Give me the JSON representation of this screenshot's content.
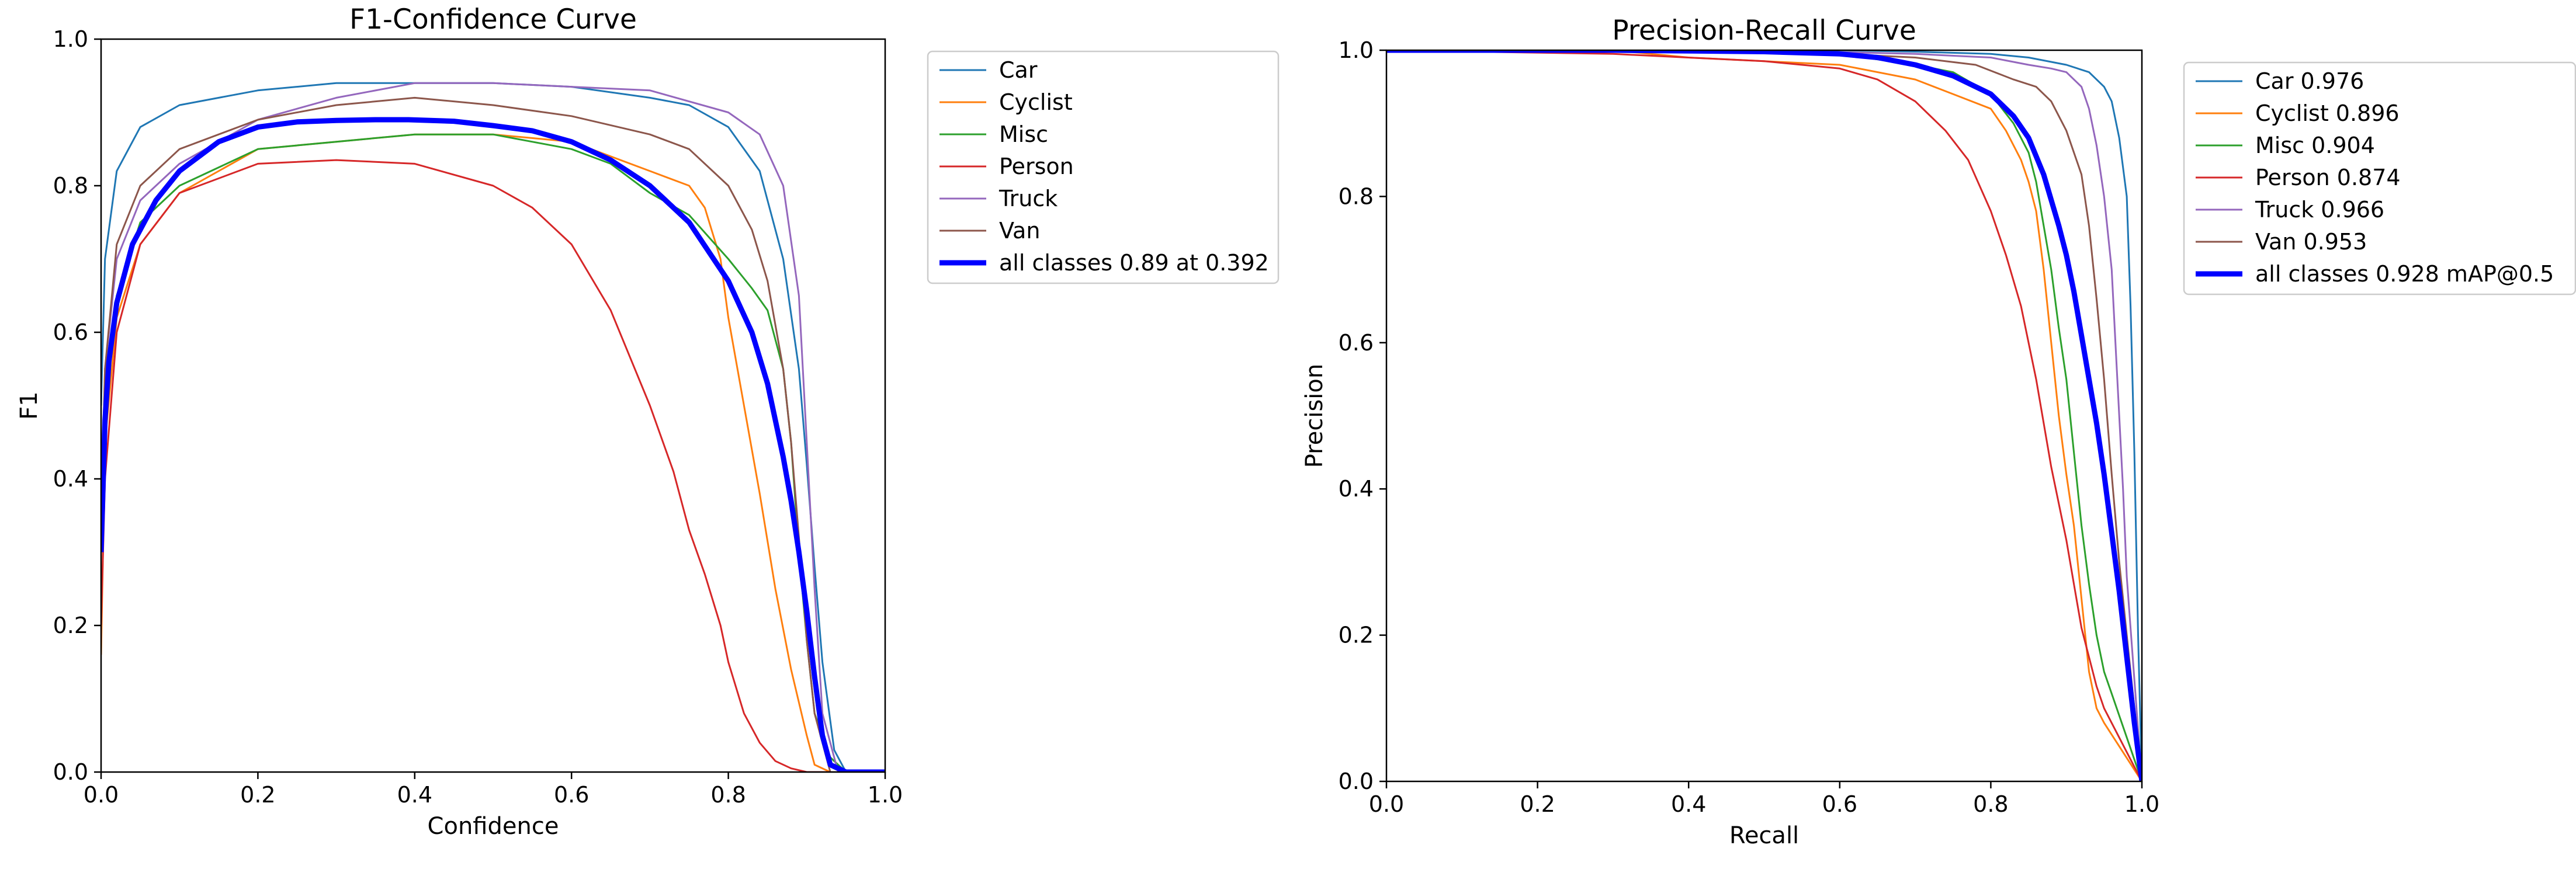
{
  "colors": {
    "Car": "#1f77b4",
    "Cyclist": "#ff7f0e",
    "Misc": "#2ca02c",
    "Person": "#d62728",
    "Truck": "#9467bd",
    "Van": "#8c564b",
    "all_classes": "#0000ff"
  },
  "chart_data": [
    {
      "type": "line",
      "title": "F1-Confidence Curve",
      "xlabel": "Confidence",
      "ylabel": "F1",
      "xlim": [
        0,
        1
      ],
      "ylim": [
        0,
        1
      ],
      "xticks": [
        "0.0",
        "0.2",
        "0.4",
        "0.6",
        "0.8",
        "1.0"
      ],
      "yticks": [
        "0.0",
        "0.2",
        "0.4",
        "0.6",
        "0.8",
        "1.0"
      ],
      "grid": false,
      "legend_position": "outside-right",
      "series": [
        {
          "name": "Car",
          "color": "#1f77b4",
          "width": 3,
          "x": [
            0,
            0.005,
            0.02,
            0.05,
            0.1,
            0.2,
            0.3,
            0.4,
            0.5,
            0.6,
            0.7,
            0.75,
            0.8,
            0.84,
            0.87,
            0.89,
            0.9,
            0.91,
            0.92,
            0.935,
            0.95,
            1.0
          ],
          "y": [
            0.5,
            0.7,
            0.82,
            0.88,
            0.91,
            0.93,
            0.94,
            0.94,
            0.94,
            0.935,
            0.92,
            0.91,
            0.88,
            0.82,
            0.7,
            0.55,
            0.42,
            0.28,
            0.15,
            0.03,
            0.0,
            0.0
          ]
        },
        {
          "name": "Cyclist",
          "color": "#ff7f0e",
          "width": 3,
          "x": [
            0,
            0.005,
            0.02,
            0.05,
            0.1,
            0.2,
            0.3,
            0.4,
            0.5,
            0.6,
            0.7,
            0.75,
            0.77,
            0.79,
            0.8,
            0.82,
            0.84,
            0.86,
            0.88,
            0.9,
            0.91,
            0.93,
            1.0
          ],
          "y": [
            0.16,
            0.45,
            0.62,
            0.72,
            0.79,
            0.85,
            0.86,
            0.87,
            0.87,
            0.86,
            0.82,
            0.8,
            0.77,
            0.7,
            0.62,
            0.5,
            0.38,
            0.25,
            0.14,
            0.05,
            0.01,
            0.0,
            0.0
          ]
        },
        {
          "name": "Misc",
          "color": "#2ca02c",
          "width": 3,
          "x": [
            0,
            0.005,
            0.02,
            0.05,
            0.1,
            0.2,
            0.3,
            0.4,
            0.5,
            0.6,
            0.65,
            0.7,
            0.75,
            0.8,
            0.83,
            0.85,
            0.87,
            0.88,
            0.89,
            0.9,
            0.91,
            0.93,
            0.95,
            1.0
          ],
          "y": [
            0.3,
            0.5,
            0.65,
            0.75,
            0.8,
            0.85,
            0.86,
            0.87,
            0.87,
            0.85,
            0.83,
            0.79,
            0.76,
            0.7,
            0.66,
            0.63,
            0.55,
            0.45,
            0.3,
            0.18,
            0.08,
            0.02,
            0.0,
            0.0
          ]
        },
        {
          "name": "Person",
          "color": "#d62728",
          "width": 3,
          "x": [
            0,
            0.005,
            0.02,
            0.05,
            0.1,
            0.2,
            0.3,
            0.4,
            0.5,
            0.55,
            0.6,
            0.65,
            0.7,
            0.73,
            0.75,
            0.77,
            0.79,
            0.8,
            0.82,
            0.84,
            0.86,
            0.88,
            0.9,
            1.0
          ],
          "y": [
            0.2,
            0.4,
            0.6,
            0.72,
            0.79,
            0.83,
            0.835,
            0.83,
            0.8,
            0.77,
            0.72,
            0.63,
            0.5,
            0.41,
            0.33,
            0.27,
            0.2,
            0.15,
            0.08,
            0.04,
            0.015,
            0.005,
            0.0,
            0.0
          ]
        },
        {
          "name": "Truck",
          "color": "#9467bd",
          "width": 3,
          "x": [
            0,
            0.005,
            0.02,
            0.05,
            0.1,
            0.2,
            0.3,
            0.4,
            0.5,
            0.6,
            0.7,
            0.8,
            0.84,
            0.87,
            0.89,
            0.9,
            0.91,
            0.92,
            0.94,
            1.0
          ],
          "y": [
            0.35,
            0.55,
            0.7,
            0.78,
            0.83,
            0.89,
            0.92,
            0.94,
            0.94,
            0.935,
            0.93,
            0.9,
            0.87,
            0.8,
            0.65,
            0.45,
            0.25,
            0.08,
            0.0,
            0.0
          ]
        },
        {
          "name": "Van",
          "color": "#8c564b",
          "width": 3,
          "x": [
            0,
            0.005,
            0.02,
            0.05,
            0.1,
            0.2,
            0.3,
            0.4,
            0.5,
            0.6,
            0.7,
            0.75,
            0.8,
            0.83,
            0.85,
            0.87,
            0.88,
            0.89,
            0.9,
            0.91,
            0.93,
            1.0
          ],
          "y": [
            0.35,
            0.55,
            0.72,
            0.8,
            0.85,
            0.89,
            0.91,
            0.92,
            0.91,
            0.895,
            0.87,
            0.85,
            0.8,
            0.74,
            0.67,
            0.55,
            0.45,
            0.32,
            0.18,
            0.08,
            0.0,
            0.0
          ]
        },
        {
          "name": "all classes 0.89 at 0.392",
          "color": "#0000ff",
          "width": 9,
          "x": [
            0,
            0.005,
            0.01,
            0.02,
            0.04,
            0.07,
            0.1,
            0.15,
            0.2,
            0.25,
            0.3,
            0.35,
            0.392,
            0.45,
            0.5,
            0.55,
            0.6,
            0.65,
            0.7,
            0.75,
            0.8,
            0.83,
            0.85,
            0.87,
            0.88,
            0.89,
            0.9,
            0.91,
            0.92,
            0.93,
            0.95,
            1.0
          ],
          "y": [
            0.3,
            0.48,
            0.56,
            0.64,
            0.72,
            0.78,
            0.82,
            0.86,
            0.88,
            0.887,
            0.889,
            0.89,
            0.89,
            0.888,
            0.882,
            0.875,
            0.86,
            0.835,
            0.8,
            0.75,
            0.67,
            0.6,
            0.53,
            0.43,
            0.37,
            0.3,
            0.22,
            0.13,
            0.05,
            0.01,
            0.0,
            0.0
          ]
        }
      ]
    },
    {
      "type": "line",
      "title": "Precision-Recall Curve",
      "xlabel": "Recall",
      "ylabel": "Precision",
      "xlim": [
        0,
        1
      ],
      "ylim": [
        0,
        1
      ],
      "xticks": [
        "0.0",
        "0.2",
        "0.4",
        "0.6",
        "0.8",
        "1.0"
      ],
      "yticks": [
        "0.0",
        "0.2",
        "0.4",
        "0.6",
        "0.8",
        "1.0"
      ],
      "grid": false,
      "legend_position": "outside-right",
      "series": [
        {
          "name": "Car 0.976",
          "color": "#1f77b4",
          "width": 3,
          "x": [
            0,
            0.3,
            0.6,
            0.7,
            0.8,
            0.85,
            0.9,
            0.93,
            0.95,
            0.96,
            0.97,
            0.98,
            0.985,
            0.99,
            0.995,
            1.0
          ],
          "y": [
            1.0,
            1.0,
            1.0,
            0.998,
            0.995,
            0.99,
            0.98,
            0.97,
            0.95,
            0.93,
            0.88,
            0.8,
            0.65,
            0.45,
            0.2,
            0.0
          ]
        },
        {
          "name": "Cyclist 0.896",
          "color": "#ff7f0e",
          "width": 3,
          "x": [
            0,
            0.3,
            0.4,
            0.5,
            0.6,
            0.7,
            0.75,
            0.8,
            0.82,
            0.84,
            0.85,
            0.86,
            0.87,
            0.88,
            0.89,
            0.9,
            0.91,
            0.92,
            0.93,
            0.94,
            0.95,
            1.0
          ],
          "y": [
            1.0,
            1.0,
            0.99,
            0.985,
            0.98,
            0.96,
            0.94,
            0.92,
            0.89,
            0.85,
            0.82,
            0.78,
            0.7,
            0.6,
            0.5,
            0.42,
            0.35,
            0.25,
            0.15,
            0.1,
            0.08,
            0.0
          ]
        },
        {
          "name": "Misc 0.904",
          "color": "#2ca02c",
          "width": 3,
          "x": [
            0,
            0.4,
            0.6,
            0.7,
            0.75,
            0.8,
            0.83,
            0.85,
            0.86,
            0.87,
            0.88,
            0.89,
            0.9,
            0.91,
            0.92,
            0.93,
            0.94,
            0.95,
            0.96,
            1.0
          ],
          "y": [
            1.0,
            1.0,
            0.995,
            0.98,
            0.97,
            0.94,
            0.9,
            0.86,
            0.82,
            0.76,
            0.7,
            0.62,
            0.55,
            0.45,
            0.35,
            0.27,
            0.2,
            0.15,
            0.12,
            0.0
          ]
        },
        {
          "name": "Person 0.874",
          "color": "#d62728",
          "width": 3,
          "x": [
            0,
            0.3,
            0.5,
            0.6,
            0.65,
            0.7,
            0.74,
            0.77,
            0.8,
            0.82,
            0.84,
            0.86,
            0.88,
            0.9,
            0.91,
            0.92,
            0.93,
            0.94,
            0.95,
            1.0
          ],
          "y": [
            1.0,
            0.995,
            0.985,
            0.975,
            0.96,
            0.93,
            0.89,
            0.85,
            0.78,
            0.72,
            0.65,
            0.55,
            0.43,
            0.33,
            0.27,
            0.21,
            0.17,
            0.13,
            0.1,
            0.0
          ]
        },
        {
          "name": "Truck 0.966",
          "color": "#9467bd",
          "width": 3,
          "x": [
            0,
            0.5,
            0.7,
            0.8,
            0.85,
            0.88,
            0.9,
            0.92,
            0.93,
            0.94,
            0.95,
            0.96,
            0.965,
            0.97,
            0.975,
            0.98,
            1.0
          ],
          "y": [
            1.0,
            1.0,
            0.995,
            0.99,
            0.98,
            0.975,
            0.97,
            0.95,
            0.92,
            0.87,
            0.8,
            0.7,
            0.6,
            0.5,
            0.4,
            0.28,
            0.0
          ]
        },
        {
          "name": "Van 0.953",
          "color": "#8c564b",
          "width": 3,
          "x": [
            0,
            0.4,
            0.6,
            0.7,
            0.78,
            0.83,
            0.86,
            0.88,
            0.9,
            0.92,
            0.93,
            0.94,
            0.95,
            0.96,
            0.97,
            0.98,
            1.0
          ],
          "y": [
            1.0,
            1.0,
            0.995,
            0.99,
            0.98,
            0.96,
            0.95,
            0.93,
            0.89,
            0.83,
            0.76,
            0.66,
            0.55,
            0.42,
            0.3,
            0.2,
            0.0
          ]
        },
        {
          "name": "all classes 0.928 mAP@0.5",
          "color": "#0000ff",
          "width": 9,
          "x": [
            0,
            0.3,
            0.5,
            0.6,
            0.65,
            0.7,
            0.75,
            0.8,
            0.83,
            0.85,
            0.87,
            0.89,
            0.9,
            0.91,
            0.92,
            0.93,
            0.94,
            0.95,
            0.96,
            0.97,
            0.98,
            0.99,
            1.0
          ],
          "y": [
            1.0,
            1.0,
            0.998,
            0.995,
            0.99,
            0.98,
            0.965,
            0.94,
            0.91,
            0.88,
            0.83,
            0.76,
            0.72,
            0.67,
            0.61,
            0.55,
            0.49,
            0.42,
            0.34,
            0.26,
            0.17,
            0.08,
            0.0
          ]
        }
      ]
    }
  ]
}
